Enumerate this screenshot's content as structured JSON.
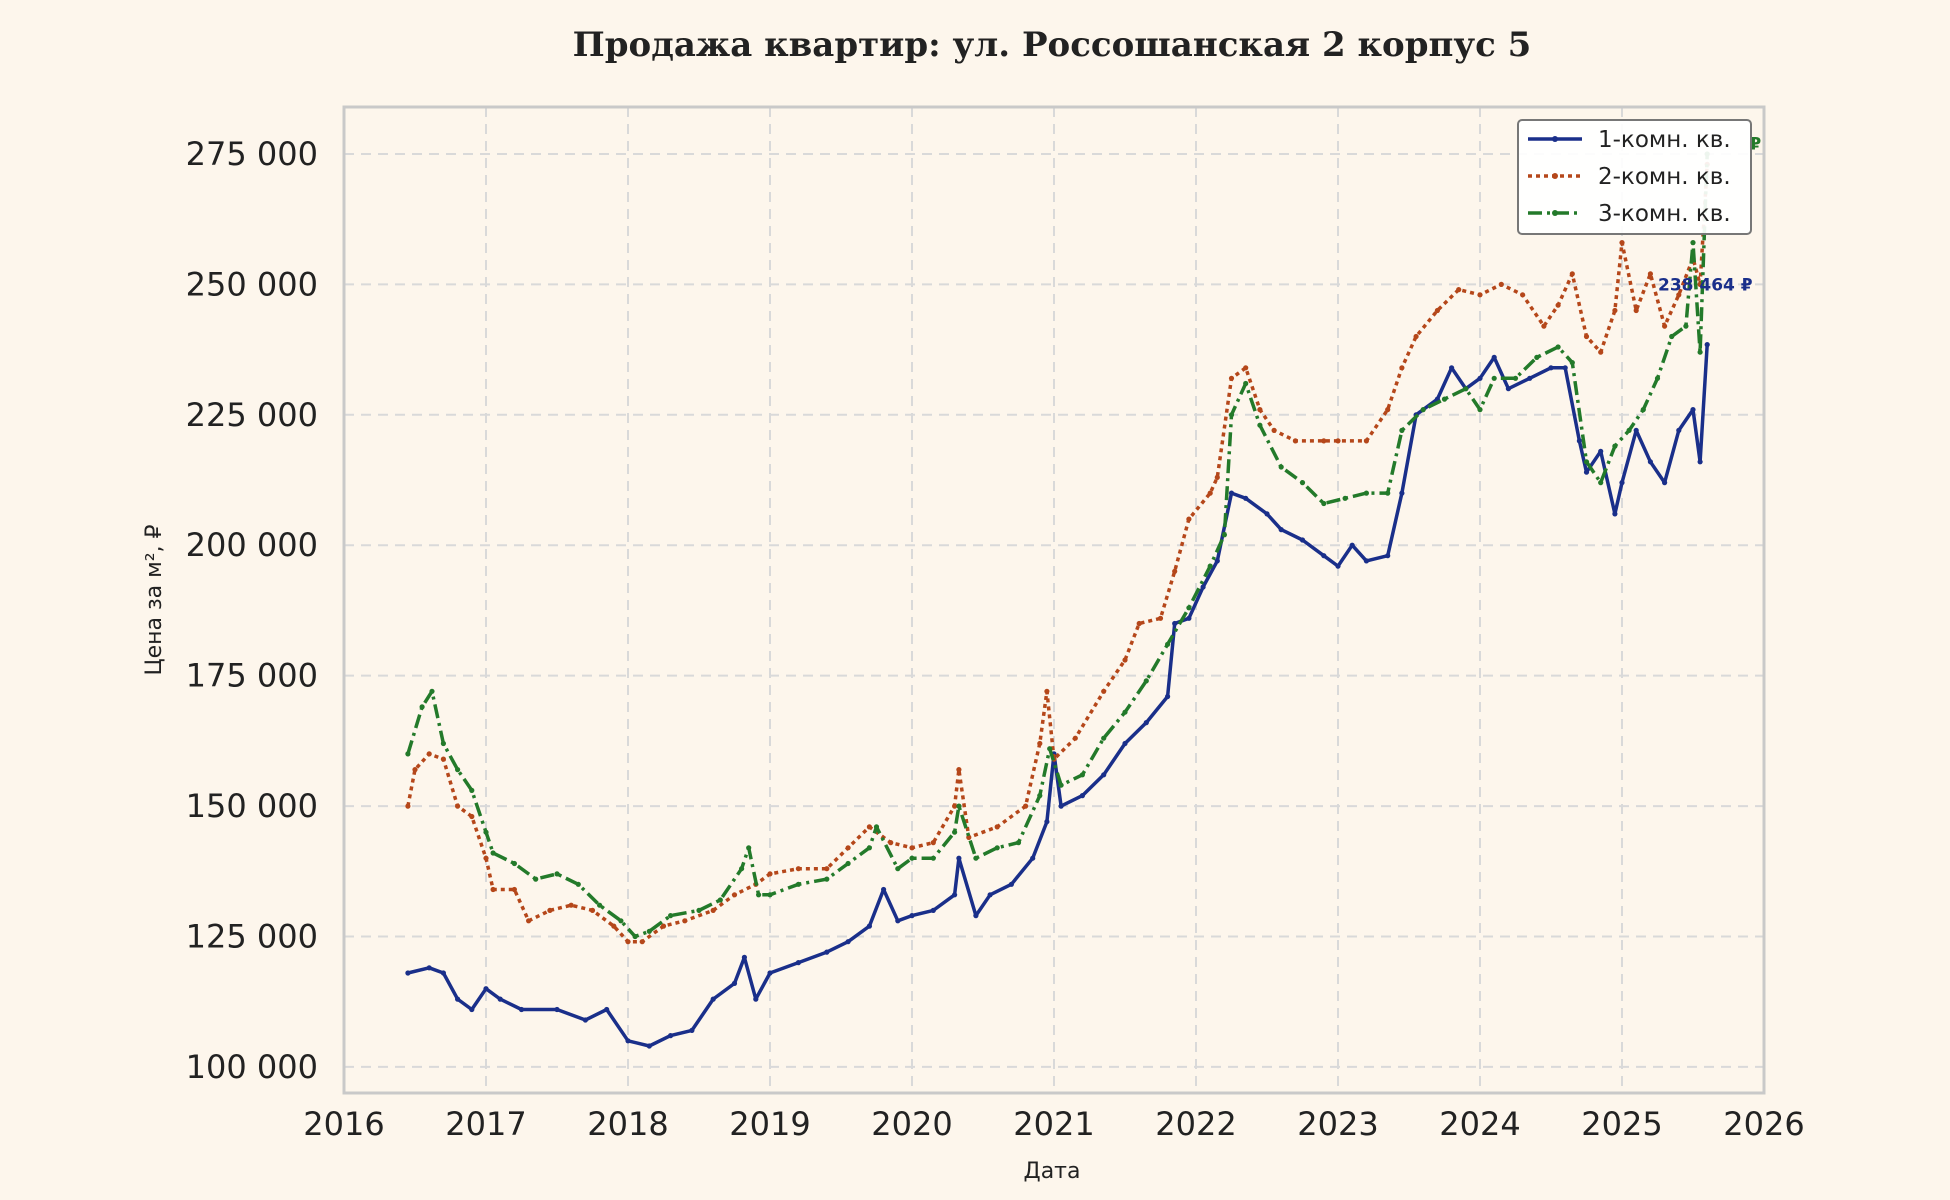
{
  "chart_data": {
    "type": "line",
    "title": "Продажа квартир: ул. Россошанская 2 корпус 5",
    "xlabel": "Дата",
    "ylabel": "Цена за м², ₽",
    "xlim": [
      2016,
      2026
    ],
    "ylim": [
      95000,
      284000
    ],
    "x_ticks": [
      2016,
      2017,
      2018,
      2019,
      2020,
      2021,
      2022,
      2023,
      2024,
      2025,
      2026
    ],
    "x_tick_labels": [
      "2016",
      "2017",
      "2018",
      "2019",
      "2020",
      "2021",
      "2022",
      "2023",
      "2024",
      "2025",
      "2026"
    ],
    "y_ticks": [
      100000,
      125000,
      150000,
      175000,
      200000,
      225000,
      250000,
      275000
    ],
    "y_tick_labels": [
      "100 000",
      "125 000",
      "150 000",
      "175 000",
      "200 000",
      "225 000",
      "250 000",
      "275 000"
    ],
    "grid": true,
    "legend_position": "top-right",
    "series": [
      {
        "name": "1-комн. кв.",
        "color": "#1a2f8a",
        "style": "solid",
        "points": [
          [
            2016.45,
            118000
          ],
          [
            2016.6,
            119000
          ],
          [
            2016.7,
            118000
          ],
          [
            2016.8,
            113000
          ],
          [
            2016.9,
            111000
          ],
          [
            2017.0,
            115000
          ],
          [
            2017.1,
            113000
          ],
          [
            2017.25,
            111000
          ],
          [
            2017.5,
            111000
          ],
          [
            2017.7,
            109000
          ],
          [
            2017.85,
            111000
          ],
          [
            2018.0,
            105000
          ],
          [
            2018.15,
            104000
          ],
          [
            2018.3,
            106000
          ],
          [
            2018.45,
            107000
          ],
          [
            2018.6,
            113000
          ],
          [
            2018.75,
            116000
          ],
          [
            2018.82,
            121000
          ],
          [
            2018.9,
            113000
          ],
          [
            2019.0,
            118000
          ],
          [
            2019.2,
            120000
          ],
          [
            2019.4,
            122000
          ],
          [
            2019.55,
            124000
          ],
          [
            2019.7,
            127000
          ],
          [
            2019.8,
            134000
          ],
          [
            2019.9,
            128000
          ],
          [
            2020.0,
            129000
          ],
          [
            2020.15,
            130000
          ],
          [
            2020.3,
            133000
          ],
          [
            2020.33,
            140000
          ],
          [
            2020.45,
            129000
          ],
          [
            2020.55,
            133000
          ],
          [
            2020.7,
            135000
          ],
          [
            2020.85,
            140000
          ],
          [
            2020.95,
            147000
          ],
          [
            2021.0,
            160000
          ],
          [
            2021.05,
            150000
          ],
          [
            2021.2,
            152000
          ],
          [
            2021.35,
            156000
          ],
          [
            2021.5,
            162000
          ],
          [
            2021.65,
            166000
          ],
          [
            2021.8,
            171000
          ],
          [
            2021.85,
            185000
          ],
          [
            2021.95,
            186000
          ],
          [
            2022.05,
            192000
          ],
          [
            2022.15,
            197000
          ],
          [
            2022.25,
            210000
          ],
          [
            2022.35,
            209000
          ],
          [
            2022.5,
            206000
          ],
          [
            2022.6,
            203000
          ],
          [
            2022.75,
            201000
          ],
          [
            2022.9,
            198000
          ],
          [
            2023.0,
            196000
          ],
          [
            2023.1,
            200000
          ],
          [
            2023.2,
            197000
          ],
          [
            2023.35,
            198000
          ],
          [
            2023.45,
            210000
          ],
          [
            2023.55,
            225000
          ],
          [
            2023.7,
            228000
          ],
          [
            2023.8,
            234000
          ],
          [
            2023.9,
            230000
          ],
          [
            2024.0,
            232000
          ],
          [
            2024.1,
            236000
          ],
          [
            2024.2,
            230000
          ],
          [
            2024.35,
            232000
          ],
          [
            2024.5,
            234000
          ],
          [
            2024.6,
            234000
          ],
          [
            2024.7,
            220000
          ],
          [
            2024.75,
            214000
          ],
          [
            2024.85,
            218000
          ],
          [
            2024.95,
            206000
          ],
          [
            2025.0,
            212000
          ],
          [
            2025.1,
            222000
          ],
          [
            2025.2,
            216000
          ],
          [
            2025.3,
            212000
          ],
          [
            2025.4,
            222000
          ],
          [
            2025.5,
            226000
          ],
          [
            2025.55,
            216000
          ],
          [
            2025.6,
            238464
          ]
        ]
      },
      {
        "name": "2-комн. кв.",
        "color": "#b5471a",
        "style": "dotted",
        "points": [
          [
            2016.45,
            150000
          ],
          [
            2016.5,
            157000
          ],
          [
            2016.6,
            160000
          ],
          [
            2016.7,
            159000
          ],
          [
            2016.8,
            150000
          ],
          [
            2016.9,
            148000
          ],
          [
            2017.0,
            140000
          ],
          [
            2017.05,
            134000
          ],
          [
            2017.2,
            134000
          ],
          [
            2017.3,
            128000
          ],
          [
            2017.45,
            130000
          ],
          [
            2017.6,
            131000
          ],
          [
            2017.75,
            130000
          ],
          [
            2017.9,
            127000
          ],
          [
            2018.0,
            124000
          ],
          [
            2018.1,
            124000
          ],
          [
            2018.25,
            127000
          ],
          [
            2018.4,
            128000
          ],
          [
            2018.6,
            130000
          ],
          [
            2018.75,
            133000
          ],
          [
            2018.9,
            135000
          ],
          [
            2019.0,
            137000
          ],
          [
            2019.2,
            138000
          ],
          [
            2019.4,
            138000
          ],
          [
            2019.55,
            142000
          ],
          [
            2019.7,
            146000
          ],
          [
            2019.85,
            143000
          ],
          [
            2020.0,
            142000
          ],
          [
            2020.15,
            143000
          ],
          [
            2020.3,
            150000
          ],
          [
            2020.33,
            157000
          ],
          [
            2020.4,
            144000
          ],
          [
            2020.6,
            146000
          ],
          [
            2020.8,
            150000
          ],
          [
            2020.9,
            162000
          ],
          [
            2020.95,
            172000
          ],
          [
            2021.0,
            159000
          ],
          [
            2021.15,
            163000
          ],
          [
            2021.35,
            172000
          ],
          [
            2021.5,
            178000
          ],
          [
            2021.6,
            185000
          ],
          [
            2021.75,
            186000
          ],
          [
            2021.85,
            195000
          ],
          [
            2021.95,
            205000
          ],
          [
            2022.1,
            210000
          ],
          [
            2022.15,
            213000
          ],
          [
            2022.25,
            232000
          ],
          [
            2022.35,
            234000
          ],
          [
            2022.45,
            226000
          ],
          [
            2022.55,
            222000
          ],
          [
            2022.7,
            220000
          ],
          [
            2022.9,
            220000
          ],
          [
            2023.0,
            220000
          ],
          [
            2023.2,
            220000
          ],
          [
            2023.35,
            226000
          ],
          [
            2023.45,
            234000
          ],
          [
            2023.55,
            240000
          ],
          [
            2023.7,
            245000
          ],
          [
            2023.85,
            249000
          ],
          [
            2024.0,
            248000
          ],
          [
            2024.15,
            250000
          ],
          [
            2024.3,
            248000
          ],
          [
            2024.45,
            242000
          ],
          [
            2024.55,
            246000
          ],
          [
            2024.65,
            252000
          ],
          [
            2024.75,
            240000
          ],
          [
            2024.85,
            237000
          ],
          [
            2024.95,
            245000
          ],
          [
            2025.0,
            258000
          ],
          [
            2025.1,
            245000
          ],
          [
            2025.2,
            252000
          ],
          [
            2025.3,
            242000
          ],
          [
            2025.4,
            248000
          ],
          [
            2025.5,
            255000
          ],
          [
            2025.55,
            250000
          ],
          [
            2025.6,
            273000
          ]
        ]
      },
      {
        "name": "3-комн. кв.",
        "color": "#237a2a",
        "style": "dashdot",
        "points": [
          [
            2016.45,
            160000
          ],
          [
            2016.55,
            169000
          ],
          [
            2016.62,
            172000
          ],
          [
            2016.7,
            162000
          ],
          [
            2016.8,
            157000
          ],
          [
            2016.9,
            153000
          ],
          [
            2017.0,
            145000
          ],
          [
            2017.05,
            141000
          ],
          [
            2017.2,
            139000
          ],
          [
            2017.35,
            136000
          ],
          [
            2017.5,
            137000
          ],
          [
            2017.65,
            135000
          ],
          [
            2017.8,
            131000
          ],
          [
            2017.95,
            128000
          ],
          [
            2018.05,
            125000
          ],
          [
            2018.15,
            126000
          ],
          [
            2018.3,
            129000
          ],
          [
            2018.5,
            130000
          ],
          [
            2018.65,
            132000
          ],
          [
            2018.8,
            138000
          ],
          [
            2018.85,
            142000
          ],
          [
            2018.92,
            133000
          ],
          [
            2019.0,
            133000
          ],
          [
            2019.2,
            135000
          ],
          [
            2019.4,
            136000
          ],
          [
            2019.55,
            139000
          ],
          [
            2019.7,
            142000
          ],
          [
            2019.75,
            146000
          ],
          [
            2019.9,
            138000
          ],
          [
            2020.0,
            140000
          ],
          [
            2020.15,
            140000
          ],
          [
            2020.3,
            145000
          ],
          [
            2020.33,
            150000
          ],
          [
            2020.45,
            140000
          ],
          [
            2020.6,
            142000
          ],
          [
            2020.75,
            143000
          ],
          [
            2020.9,
            152000
          ],
          [
            2020.97,
            161000
          ],
          [
            2021.05,
            154000
          ],
          [
            2021.2,
            156000
          ],
          [
            2021.35,
            163000
          ],
          [
            2021.5,
            168000
          ],
          [
            2021.65,
            174000
          ],
          [
            2021.8,
            181000
          ],
          [
            2021.95,
            188000
          ],
          [
            2022.1,
            196000
          ],
          [
            2022.2,
            202000
          ],
          [
            2022.25,
            225000
          ],
          [
            2022.35,
            231000
          ],
          [
            2022.45,
            223000
          ],
          [
            2022.6,
            215000
          ],
          [
            2022.75,
            212000
          ],
          [
            2022.9,
            208000
          ],
          [
            2023.05,
            209000
          ],
          [
            2023.2,
            210000
          ],
          [
            2023.35,
            210000
          ],
          [
            2023.45,
            222000
          ],
          [
            2023.6,
            226000
          ],
          [
            2023.75,
            228000
          ],
          [
            2023.9,
            230000
          ],
          [
            2024.0,
            226000
          ],
          [
            2024.1,
            232000
          ],
          [
            2024.25,
            232000
          ],
          [
            2024.4,
            236000
          ],
          [
            2024.55,
            238000
          ],
          [
            2024.65,
            235000
          ],
          [
            2024.75,
            216000
          ],
          [
            2024.85,
            212000
          ],
          [
            2024.95,
            219000
          ],
          [
            2025.05,
            222000
          ],
          [
            2025.15,
            226000
          ],
          [
            2025.25,
            232000
          ],
          [
            2025.35,
            240000
          ],
          [
            2025.45,
            242000
          ],
          [
            2025.5,
            258000
          ],
          [
            2025.55,
            237000
          ],
          [
            2025.6,
            275000
          ]
        ]
      }
    ],
    "annotations": [
      {
        "text": "238 464 ₽",
        "x": 2025.92,
        "y": 250000,
        "color": "#1a2f8a"
      },
      {
        "text": "₽",
        "x": 2025.98,
        "y": 277000,
        "color": "#237a2a"
      }
    ]
  }
}
